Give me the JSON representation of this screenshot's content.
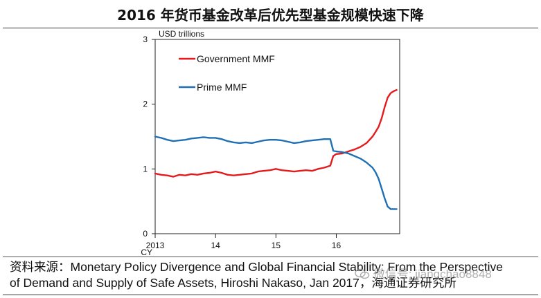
{
  "title": "2016 年货币基金改革后优先型基金规模快速下降",
  "source_line1": "资料来源：Monetary Policy Divergence and Global Financial Stability: From the Perspective",
  "source_line2": "of Demand and Supply of Safe Assets, Hiroshi Nakaso, Jan 2017，海通证券研究所",
  "watermark": "微信号: jiangchao8848",
  "colors": {
    "government": "#e41a1c",
    "prime": "#1f6fb4",
    "axis": "#222222"
  },
  "chart_data": {
    "type": "line",
    "ylabel": "USD trillions",
    "xlabel": "CY",
    "xlim": [
      2013.0,
      2017.05
    ],
    "ylim": [
      0,
      3
    ],
    "yticks": [
      0,
      1,
      2,
      3
    ],
    "xticks": [
      {
        "value": 2013,
        "label": "2013"
      },
      {
        "value": 2014,
        "label": "14"
      },
      {
        "value": 2015,
        "label": "15"
      },
      {
        "value": 2016,
        "label": "16"
      }
    ],
    "grid": false,
    "legend": "top-left",
    "series": [
      {
        "name": "Government MMF",
        "color": "#e41a1c",
        "x": [
          2013.0,
          2013.1,
          2013.2,
          2013.3,
          2013.4,
          2013.5,
          2013.6,
          2013.7,
          2013.8,
          2013.9,
          2014.0,
          2014.1,
          2014.2,
          2014.3,
          2014.4,
          2014.5,
          2014.6,
          2014.7,
          2014.8,
          2014.9,
          2015.0,
          2015.1,
          2015.2,
          2015.3,
          2015.4,
          2015.5,
          2015.6,
          2015.7,
          2015.8,
          2015.9,
          2015.95,
          2016.0,
          2016.1,
          2016.2,
          2016.3,
          2016.4,
          2016.5,
          2016.6,
          2016.65,
          2016.7,
          2016.75,
          2016.8,
          2016.85,
          2016.9,
          2016.95,
          2017.0
        ],
        "values": [
          0.93,
          0.91,
          0.9,
          0.88,
          0.91,
          0.9,
          0.92,
          0.91,
          0.93,
          0.94,
          0.96,
          0.94,
          0.91,
          0.9,
          0.91,
          0.92,
          0.93,
          0.96,
          0.97,
          0.98,
          1.0,
          0.98,
          0.97,
          0.96,
          0.97,
          0.98,
          0.97,
          1.0,
          1.02,
          1.05,
          1.2,
          1.23,
          1.24,
          1.27,
          1.3,
          1.34,
          1.4,
          1.5,
          1.57,
          1.65,
          1.78,
          1.95,
          2.1,
          2.17,
          2.2,
          2.22
        ]
      },
      {
        "name": "Prime MMF",
        "color": "#1f6fb4",
        "x": [
          2013.0,
          2013.1,
          2013.2,
          2013.3,
          2013.4,
          2013.5,
          2013.6,
          2013.7,
          2013.8,
          2013.9,
          2014.0,
          2014.1,
          2014.2,
          2014.3,
          2014.4,
          2014.5,
          2014.6,
          2014.7,
          2014.8,
          2014.9,
          2015.0,
          2015.1,
          2015.2,
          2015.3,
          2015.4,
          2015.5,
          2015.6,
          2015.7,
          2015.8,
          2015.9,
          2015.95,
          2016.0,
          2016.1,
          2016.2,
          2016.3,
          2016.4,
          2016.5,
          2016.6,
          2016.65,
          2016.7,
          2016.75,
          2016.8,
          2016.85,
          2016.9,
          2016.95,
          2017.0
        ],
        "values": [
          1.5,
          1.48,
          1.45,
          1.43,
          1.44,
          1.45,
          1.47,
          1.48,
          1.49,
          1.48,
          1.48,
          1.46,
          1.43,
          1.41,
          1.4,
          1.41,
          1.4,
          1.42,
          1.44,
          1.45,
          1.45,
          1.44,
          1.42,
          1.4,
          1.41,
          1.43,
          1.44,
          1.45,
          1.46,
          1.46,
          1.28,
          1.27,
          1.26,
          1.24,
          1.2,
          1.16,
          1.1,
          1.02,
          0.95,
          0.85,
          0.7,
          0.55,
          0.42,
          0.38,
          0.38,
          0.38
        ]
      }
    ]
  }
}
